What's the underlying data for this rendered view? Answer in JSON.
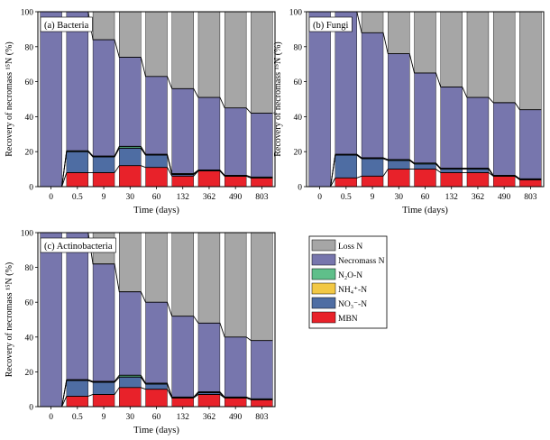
{
  "colors": {
    "loss_n": "#a6a6a6",
    "necromass_n": "#7776ad",
    "n2o_n": "#5fbf8a",
    "nh4_n": "#f2c844",
    "no3_n": "#4e6da3",
    "mbn": "#e8222a",
    "axis": "#000000"
  },
  "legend": {
    "items": [
      {
        "key": "loss",
        "label": "Loss N",
        "color": "#a6a6a6"
      },
      {
        "key": "necro",
        "label": "Necromass N",
        "color": "#7776ad"
      },
      {
        "key": "n2o",
        "label": "N₂O-N",
        "color": "#5fbf8a"
      },
      {
        "key": "nh4",
        "label": "NH₄⁺-N",
        "color": "#f2c844"
      },
      {
        "key": "no3",
        "label": "NO₃⁻-N",
        "color": "#4e6da3"
      },
      {
        "key": "mbn",
        "label": "MBN",
        "color": "#e8222a"
      }
    ]
  },
  "chart_data": [
    {
      "type": "bar",
      "stacked": true,
      "title": "(a) Bacteria",
      "xlabel": "Time (days)",
      "ylabel": "Recovery of necromass ¹⁵N (%)",
      "ylim": [
        0,
        100
      ],
      "yticks": [
        0,
        20,
        40,
        60,
        80,
        100
      ],
      "categories": [
        "0",
        "0.5",
        "9",
        "30",
        "60",
        "132",
        "362",
        "490",
        "803"
      ],
      "series": [
        {
          "name": "MBN",
          "values": [
            0,
            8,
            8,
            12,
            11,
            6,
            9,
            6,
            5
          ]
        },
        {
          "name": "NO₃⁻-N",
          "values": [
            0,
            12,
            9,
            10,
            7,
            1,
            0,
            0,
            0
          ]
        },
        {
          "name": "NH₄⁺-N",
          "values": [
            0,
            0,
            0,
            0,
            0,
            0,
            0,
            0,
            0
          ]
        },
        {
          "name": "N₂O-N",
          "values": [
            0,
            0.5,
            0.5,
            1,
            0.5,
            0.5,
            0.5,
            0.5,
            0.5
          ]
        },
        {
          "name": "Necromass N",
          "values": [
            100,
            79.5,
            66.5,
            51,
            44.5,
            48.5,
            41.5,
            38.5,
            36.5
          ]
        },
        {
          "name": "Loss N",
          "values": [
            0,
            0,
            16,
            26,
            37,
            44,
            49,
            55,
            58
          ]
        }
      ]
    },
    {
      "type": "bar",
      "stacked": true,
      "title": "(b) Fungi",
      "xlabel": "Time (days)",
      "ylabel": "Recovery of necromass ¹⁵N (%)",
      "ylim": [
        0,
        100
      ],
      "yticks": [
        0,
        20,
        40,
        60,
        80,
        100
      ],
      "categories": [
        "0",
        "0.5",
        "9",
        "30",
        "60",
        "132",
        "362",
        "490",
        "803"
      ],
      "series": [
        {
          "name": "MBN",
          "values": [
            0,
            5,
            6,
            10,
            10,
            8,
            8,
            6,
            4
          ]
        },
        {
          "name": "NO₃⁻-N",
          "values": [
            0,
            13,
            10,
            5,
            3,
            2,
            2,
            0,
            0
          ]
        },
        {
          "name": "NH₄⁺-N",
          "values": [
            0,
            0,
            0,
            0,
            0,
            0,
            0,
            0,
            0
          ]
        },
        {
          "name": "N₂O-N",
          "values": [
            0,
            0.5,
            0.5,
            0.5,
            0.5,
            0.5,
            0.5,
            0.5,
            0.5
          ]
        },
        {
          "name": "Necromass N",
          "values": [
            100,
            81.5,
            71.5,
            60.5,
            51.5,
            46.5,
            40.5,
            41.5,
            39.5
          ]
        },
        {
          "name": "Loss N",
          "values": [
            0,
            0,
            12,
            24,
            35,
            43,
            49,
            52,
            56
          ]
        }
      ]
    },
    {
      "type": "bar",
      "stacked": true,
      "title": "(c) Actinobacteria",
      "xlabel": "Time (days)",
      "ylabel": "Recovery of necromass ¹⁵N (%)",
      "ylim": [
        0,
        100
      ],
      "yticks": [
        0,
        20,
        40,
        60,
        80,
        100
      ],
      "categories": [
        "0",
        "0.5",
        "9",
        "30",
        "60",
        "132",
        "362",
        "490",
        "803"
      ],
      "series": [
        {
          "name": "MBN",
          "values": [
            0,
            6,
            7,
            11,
            10,
            5,
            7,
            5,
            4
          ]
        },
        {
          "name": "NO₃⁻-N",
          "values": [
            0,
            9,
            7,
            6,
            3,
            0,
            1,
            0,
            0
          ]
        },
        {
          "name": "NH₄⁺-N",
          "values": [
            0,
            0,
            0,
            0,
            0,
            0,
            0,
            0,
            0
          ]
        },
        {
          "name": "N₂O-N",
          "values": [
            0,
            0.5,
            0.5,
            1,
            0.5,
            0.5,
            0.5,
            0.5,
            0.5
          ]
        },
        {
          "name": "Necromass N",
          "values": [
            100,
            84.5,
            67.5,
            48,
            46.5,
            46.5,
            39.5,
            34.5,
            33.5
          ]
        },
        {
          "name": "Loss N",
          "values": [
            0,
            0,
            18,
            34,
            40,
            48,
            52,
            60,
            62
          ]
        }
      ]
    }
  ]
}
